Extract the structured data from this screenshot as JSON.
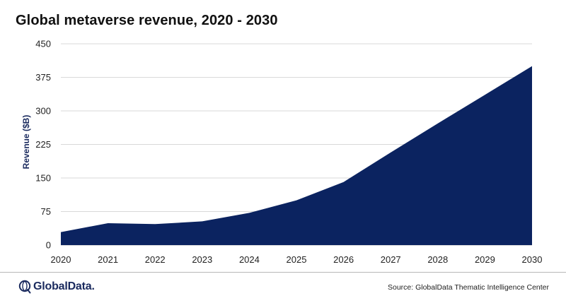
{
  "title": "Global metaverse revenue, 2020 - 2030",
  "source_text": "Source: GlobalData Thematic Intelligence Center",
  "logo_text": "GlobalData.",
  "colors": {
    "area_fill": "#0b2360",
    "grid": "#d9d9d9",
    "axis_text": "#222222",
    "brand": "#1a2a5e"
  },
  "chart_data": {
    "type": "area",
    "title": "Global metaverse revenue, 2020 - 2030",
    "xlabel": "",
    "ylabel": "Revenue ($B)",
    "categories": [
      "2020",
      "2021",
      "2022",
      "2023",
      "2024",
      "2025",
      "2026",
      "2027",
      "2028",
      "2029",
      "2030"
    ],
    "series": [
      {
        "values": [
          29,
          49,
          47,
          53,
          72,
          100,
          141,
          207,
          272,
          336,
          400
        ]
      }
    ],
    "ylim": [
      0,
      450
    ],
    "yticks": [
      0,
      75,
      150,
      225,
      300,
      375,
      450
    ],
    "grid": true,
    "legend": "none"
  }
}
